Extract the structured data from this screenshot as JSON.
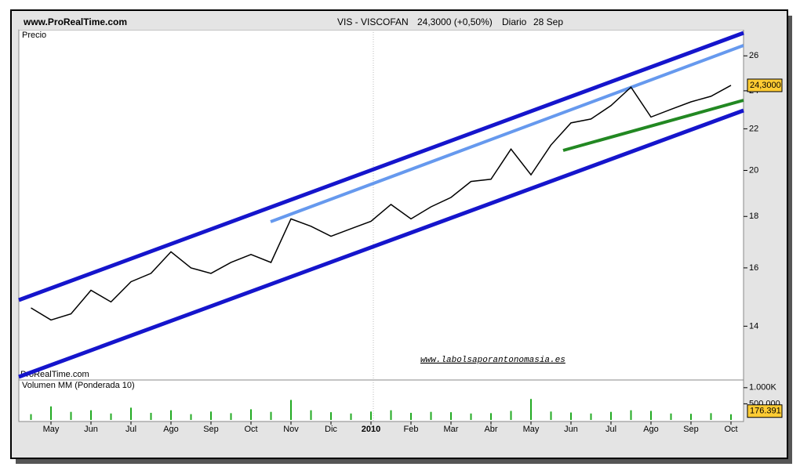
{
  "header": {
    "site": "www.ProRealTime.com",
    "ticker": "VIS - VISCOFAN",
    "quote": "24,3000 (+0,50%)",
    "period": "Diario",
    "date": "28 Sep"
  },
  "watermark": "ProRealTime.com",
  "url": "www.labolsaporantonomasia.es",
  "chart_data": [
    {
      "type": "line",
      "title": "Precio",
      "color": "#000000",
      "log": true,
      "categories": [
        null,
        "May",
        null,
        "Jun",
        null,
        "Jul",
        null,
        "Ago",
        null,
        "Sep",
        null,
        "Oct",
        null,
        "Nov",
        null,
        "Dic",
        null,
        "2010",
        null,
        "Feb",
        null,
        "Mar",
        null,
        "Abr",
        null,
        "May",
        null,
        "Jun",
        null,
        "Jul",
        null,
        "Ago",
        null,
        "Sep",
        null,
        "Oct"
      ],
      "values": [
        14.6,
        14.2,
        14.4,
        15.2,
        14.8,
        15.5,
        15.8,
        16.6,
        16.0,
        15.8,
        16.2,
        16.5,
        16.2,
        17.9,
        17.6,
        17.2,
        17.5,
        17.8,
        18.5,
        17.9,
        18.4,
        18.8,
        19.5,
        19.6,
        21.0,
        19.8,
        21.2,
        22.3,
        22.5,
        23.2,
        24.2,
        22.6,
        23.0,
        23.4,
        23.7,
        24.3
      ],
      "last_price": {
        "value": 24.3,
        "label": "24,3000"
      },
      "ylim": [
        12.4,
        27.5
      ],
      "yticks": [
        14,
        16,
        18,
        20,
        22,
        24,
        26
      ]
    },
    {
      "type": "bar",
      "title": "Volumen MM (Ponderada 10)",
      "color": "#22aa22",
      "values": [
        180000,
        420000,
        250000,
        300000,
        200000,
        380000,
        220000,
        300000,
        180000,
        260000,
        210000,
        330000,
        250000,
        620000,
        300000,
        240000,
        200000,
        260000,
        300000,
        220000,
        250000,
        240000,
        200000,
        210000,
        280000,
        650000,
        260000,
        230000,
        200000,
        250000,
        300000,
        280000,
        200000,
        190000,
        210000,
        176391
      ],
      "last_volume": {
        "value": 176391,
        "label": "176.391"
      },
      "ylim": [
        0,
        1190000
      ],
      "yticks": [
        {
          "value": 1000000,
          "label": "1.000K"
        },
        {
          "value": 500000,
          "label": "500.000"
        }
      ]
    }
  ]
}
